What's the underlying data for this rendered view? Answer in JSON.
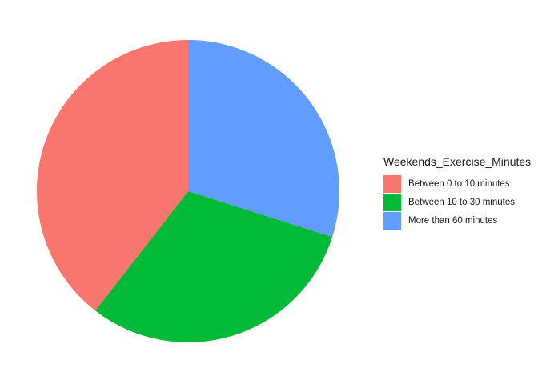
{
  "chart_data": {
    "type": "pie",
    "title": "",
    "legend_position": "right",
    "legend_title": "Weekends_Exercise_Minutes",
    "slices": [
      {
        "label": "Between 0 to 10 minutes",
        "value": 39.5,
        "color": "#F8766D"
      },
      {
        "label": "Between 10 to 30 minutes",
        "value": 30.6,
        "color": "#00BA38"
      },
      {
        "label": "More than 60 minutes",
        "value": 29.9,
        "color": "#619CFF"
      }
    ],
    "slice_order_clockwise_from_top": [
      "More than 60 minutes",
      "Between 10 to 30 minutes",
      "Between 0 to 10 minutes"
    ]
  }
}
